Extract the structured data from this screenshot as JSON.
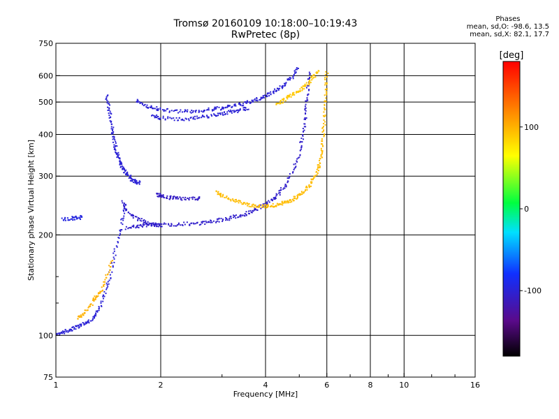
{
  "header": {
    "title_line1": "Tromsø 20160109 10:18:00–10:19:43",
    "title_line2": "RwPretec (8p)"
  },
  "phases": {
    "title": "Phases",
    "line_o": "mean, sd,O: -98.6, 13.5",
    "line_x": "mean, sd,X:  82.1, 17.7"
  },
  "colorbar": {
    "unit_label": "[deg]",
    "ticks": [
      {
        "value": 100,
        "label": "100"
      },
      {
        "value": 0,
        "label": "0"
      },
      {
        "value": -100,
        "label": "-100"
      }
    ],
    "range": [
      -180,
      180
    ]
  },
  "chart_data": {
    "type": "scatter",
    "xlabel": "Frequency [MHz]",
    "ylabel": "Stationary phase Virtual Height [km]",
    "xscale": "log",
    "yscale": "log",
    "xlim": [
      1,
      16
    ],
    "ylim": [
      75,
      750
    ],
    "x_ticks": [
      {
        "value": 1,
        "label": "1"
      },
      {
        "value": 2,
        "label": "2"
      },
      {
        "value": 4,
        "label": "4"
      },
      {
        "value": 6,
        "label": "6"
      },
      {
        "value": 8,
        "label": "8"
      },
      {
        "value": 10,
        "label": "10"
      },
      {
        "value": 16,
        "label": "16"
      }
    ],
    "x_gridlines": [
      1,
      2,
      4,
      6,
      8,
      10,
      16
    ],
    "x_minor_ticks": [
      3,
      5,
      7,
      9,
      12,
      14
    ],
    "y_ticks": [
      {
        "value": 75,
        "label": "75"
      },
      {
        "value": 100,
        "label": "100"
      },
      {
        "value": 200,
        "label": "200"
      },
      {
        "value": 300,
        "label": "300"
      },
      {
        "value": 400,
        "label": "400"
      },
      {
        "value": 500,
        "label": "500"
      },
      {
        "value": 600,
        "label": "600"
      },
      {
        "value": 750,
        "label": "750"
      }
    ],
    "y_gridlines": [
      100,
      200,
      300,
      400,
      500,
      600
    ],
    "y_minor_ticks": [
      125,
      150
    ],
    "grid": true,
    "traces": [
      {
        "mode": "O",
        "phase": -105,
        "points": [
          [
            1.6,
            210
          ],
          [
            1.7,
            212
          ],
          [
            1.8,
            214
          ],
          [
            1.9,
            214
          ],
          [
            2.0,
            214
          ],
          [
            2.2,
            215
          ],
          [
            2.4,
            216
          ],
          [
            2.6,
            217
          ],
          [
            2.8,
            219
          ],
          [
            3.0,
            222
          ],
          [
            3.2,
            225
          ],
          [
            3.4,
            229
          ],
          [
            3.6,
            234
          ],
          [
            3.8,
            240
          ],
          [
            4.0,
            247
          ],
          [
            4.2,
            256
          ],
          [
            4.4,
            268
          ],
          [
            4.6,
            285
          ],
          [
            4.8,
            310
          ],
          [
            5.0,
            350
          ],
          [
            5.1,
            390
          ],
          [
            5.2,
            440
          ],
          [
            5.25,
            500
          ],
          [
            5.3,
            560
          ],
          [
            5.35,
            620
          ]
        ]
      },
      {
        "mode": "O",
        "phase": -105,
        "points": [
          [
            1.55,
            250
          ],
          [
            1.6,
            236
          ],
          [
            1.7,
            225
          ],
          [
            1.8,
            218
          ],
          [
            1.9,
            215
          ],
          [
            2.0,
            213
          ]
        ]
      },
      {
        "mode": "O",
        "phase": -100,
        "points": [
          [
            1.7,
            505
          ],
          [
            1.8,
            490
          ],
          [
            1.9,
            480
          ],
          [
            2.0,
            474
          ],
          [
            2.2,
            470
          ],
          [
            2.4,
            468
          ],
          [
            2.6,
            470
          ],
          [
            2.8,
            475
          ],
          [
            3.0,
            480
          ],
          [
            3.2,
            486
          ],
          [
            3.4,
            492
          ],
          [
            3.6,
            500
          ],
          [
            3.8,
            510
          ],
          [
            4.0,
            522
          ],
          [
            4.2,
            535
          ],
          [
            4.4,
            552
          ],
          [
            4.6,
            572
          ],
          [
            4.8,
            600
          ],
          [
            4.95,
            640
          ]
        ]
      },
      {
        "mode": "O",
        "phase": -100,
        "points": [
          [
            1.9,
            455
          ],
          [
            2.0,
            448
          ],
          [
            2.2,
            445
          ],
          [
            2.4,
            446
          ],
          [
            2.6,
            450
          ],
          [
            2.8,
            455
          ],
          [
            3.0,
            462
          ],
          [
            3.2,
            468
          ],
          [
            3.4,
            474
          ],
          [
            3.6,
            480
          ]
        ]
      },
      {
        "mode": "O",
        "phase": -108,
        "points": [
          [
            1.95,
            265
          ],
          [
            2.0,
            262
          ],
          [
            2.1,
            259
          ],
          [
            2.2,
            258
          ],
          [
            2.3,
            257
          ],
          [
            2.5,
            257
          ],
          [
            2.6,
            258
          ]
        ]
      },
      {
        "mode": "X",
        "phase": 95,
        "points": [
          [
            2.9,
            268
          ],
          [
            3.0,
            262
          ],
          [
            3.2,
            256
          ],
          [
            3.4,
            250
          ],
          [
            3.6,
            246
          ],
          [
            3.8,
            244
          ],
          [
            4.0,
            244
          ],
          [
            4.2,
            245
          ],
          [
            4.4,
            247
          ],
          [
            4.6,
            251
          ],
          [
            4.8,
            256
          ],
          [
            5.0,
            263
          ],
          [
            5.2,
            272
          ],
          [
            5.4,
            285
          ],
          [
            5.6,
            305
          ],
          [
            5.7,
            325
          ],
          [
            5.8,
            355
          ],
          [
            5.85,
            390
          ],
          [
            5.9,
            440
          ],
          [
            5.93,
            500
          ],
          [
            5.96,
            560
          ],
          [
            6.0,
            620
          ]
        ]
      },
      {
        "mode": "X",
        "phase": 90,
        "points": [
          [
            4.3,
            490
          ],
          [
            4.5,
            505
          ],
          [
            4.7,
            520
          ],
          [
            4.9,
            535
          ],
          [
            5.1,
            550
          ],
          [
            5.3,
            570
          ],
          [
            5.5,
            595
          ],
          [
            5.7,
            625
          ]
        ]
      },
      {
        "mode": "O",
        "phase": -100,
        "points": [
          [
            1.4,
            520
          ],
          [
            1.42,
            480
          ],
          [
            1.44,
            440
          ],
          [
            1.46,
            400
          ],
          [
            1.48,
            370
          ],
          [
            1.5,
            350
          ],
          [
            1.52,
            335
          ],
          [
            1.55,
            320
          ],
          [
            1.58,
            310
          ],
          [
            1.62,
            300
          ],
          [
            1.66,
            292
          ],
          [
            1.7,
            288
          ],
          [
            1.75,
            285
          ]
        ]
      },
      {
        "mode": "O",
        "phase": -100,
        "points": [
          [
            1.0,
            100
          ],
          [
            1.05,
            102
          ],
          [
            1.1,
            104
          ],
          [
            1.15,
            106
          ],
          [
            1.2,
            108
          ],
          [
            1.25,
            110
          ],
          [
            1.3,
            115
          ],
          [
            1.35,
            125
          ],
          [
            1.4,
            140
          ],
          [
            1.45,
            160
          ],
          [
            1.5,
            190
          ],
          [
            1.55,
            220
          ],
          [
            1.6,
            250
          ]
        ]
      },
      {
        "mode": "X",
        "phase": 100,
        "points": [
          [
            1.15,
            112
          ],
          [
            1.2,
            116
          ],
          [
            1.25,
            122
          ],
          [
            1.3,
            130
          ],
          [
            1.35,
            135
          ],
          [
            1.4,
            150
          ],
          [
            1.45,
            170
          ]
        ]
      },
      {
        "mode": "O",
        "phase": -95,
        "points": [
          [
            1.05,
            222
          ],
          [
            1.1,
            224
          ],
          [
            1.15,
            225
          ],
          [
            1.2,
            226
          ]
        ]
      }
    ]
  }
}
